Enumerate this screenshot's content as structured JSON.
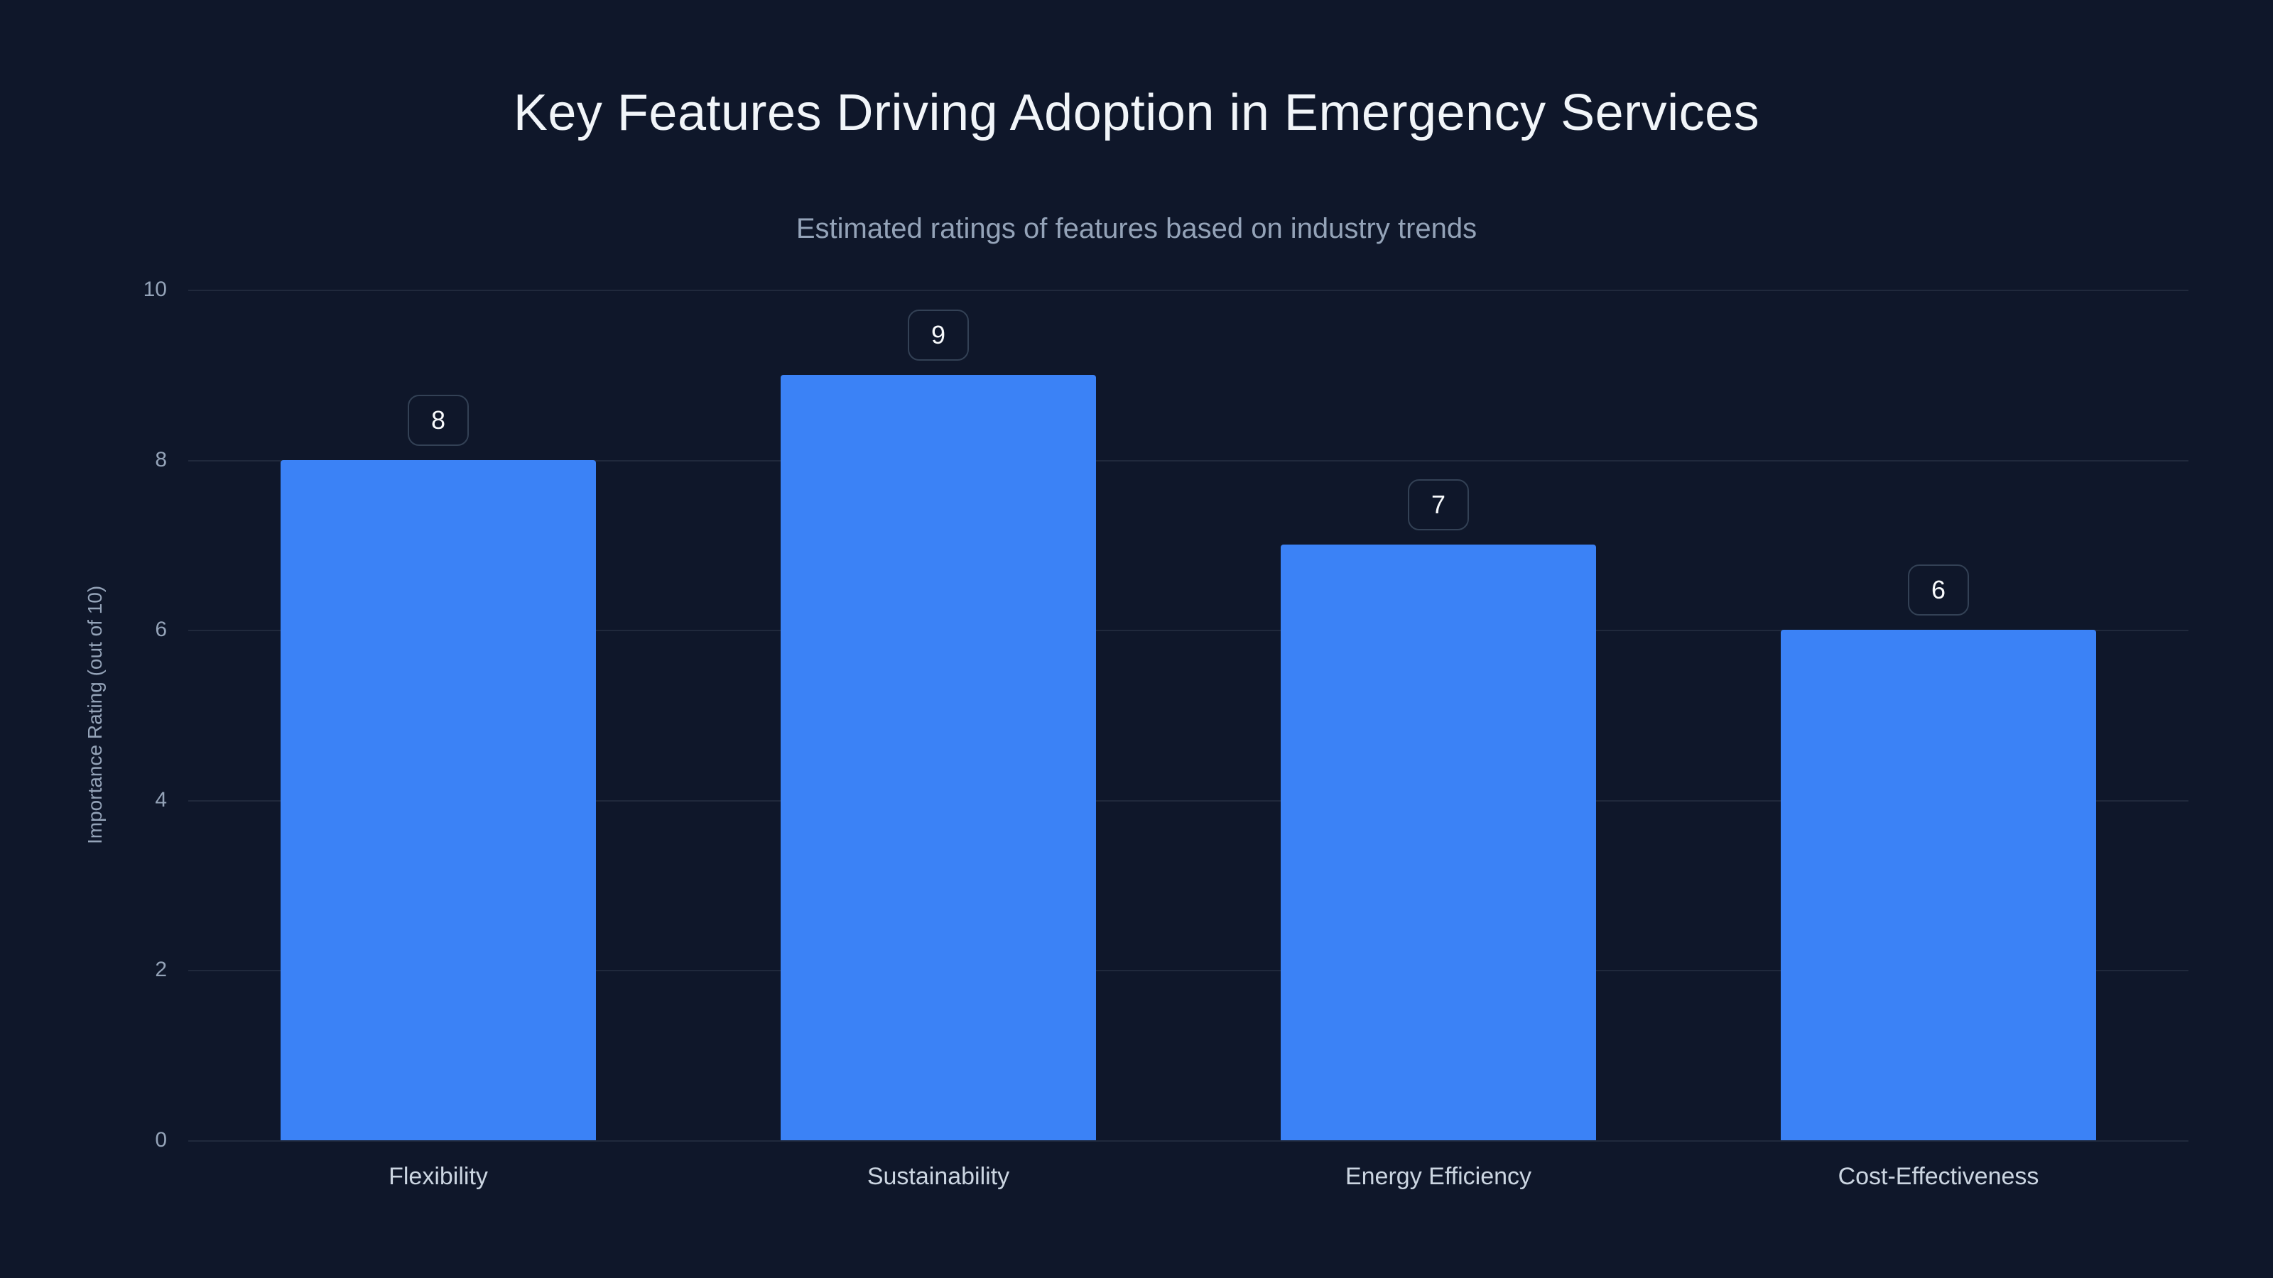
{
  "chart_data": {
    "type": "bar",
    "title": "Key Features Driving Adoption in Emergency Services",
    "subtitle": "Estimated ratings of features based on industry trends",
    "categories": [
      "Flexibility",
      "Sustainability",
      "Energy Efficiency",
      "Cost-Effectiveness"
    ],
    "values": [
      8,
      9,
      7,
      6
    ],
    "xlabel": "",
    "ylabel": "Importance Rating (out of 10)",
    "ylim": [
      0,
      10
    ],
    "yticks": [
      0,
      2,
      4,
      6,
      8,
      10
    ],
    "grid": true,
    "legend": false,
    "colors": {
      "background": "#0f172a",
      "bar": "#3b82f6",
      "gridline": "rgba(148,163,184,0.13)",
      "title_text": "#f1f5f9",
      "subtitle_text": "#94a3b8",
      "axis_text": "#94a3b8",
      "category_text": "#cbd5e1",
      "badge_border": "#334155",
      "badge_text": "#f8fafc"
    }
  }
}
